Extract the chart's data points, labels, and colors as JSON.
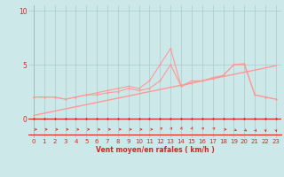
{
  "xlabel": "Vent moyen/en rafales ( km/h )",
  "bg_color": "#cce8e8",
  "grid_color": "#aacccc",
  "line_dark": "#dd2222",
  "line_light": "#ff9999",
  "xlim": [
    -0.5,
    23.5
  ],
  "ylim": [
    -1.8,
    10.5
  ],
  "yticks": [
    0,
    5,
    10
  ],
  "xticks": [
    0,
    1,
    2,
    3,
    4,
    5,
    6,
    7,
    8,
    9,
    10,
    11,
    12,
    13,
    14,
    15,
    16,
    17,
    18,
    19,
    20,
    21,
    22,
    23
  ],
  "series_zero_x": [
    0,
    1,
    2,
    3,
    4,
    5,
    6,
    7,
    8,
    9,
    10,
    11,
    12,
    13,
    14,
    15,
    16,
    17,
    18,
    19,
    20,
    21,
    22,
    23
  ],
  "series_zero_y": [
    0,
    0,
    0,
    0,
    0,
    0,
    0,
    0,
    0,
    0,
    0,
    0,
    0,
    0,
    0,
    0,
    0,
    0,
    0,
    0,
    0,
    0,
    0,
    0
  ],
  "series_avg_x": [
    0,
    1,
    2,
    3,
    4,
    5,
    6,
    7,
    8,
    9,
    10,
    11,
    12,
    13,
    14,
    15,
    16,
    17,
    18,
    19,
    20,
    21,
    22,
    23
  ],
  "series_avg_y": [
    2.0,
    2.0,
    2.0,
    1.8,
    2.0,
    2.2,
    2.2,
    2.4,
    2.5,
    2.8,
    2.6,
    2.8,
    3.5,
    5.0,
    3.0,
    3.3,
    3.5,
    3.7,
    4.0,
    5.0,
    5.1,
    2.2,
    2.0,
    1.8
  ],
  "series_gust_x": [
    0,
    1,
    2,
    3,
    4,
    5,
    6,
    7,
    8,
    9,
    10,
    11,
    12,
    13,
    14,
    15,
    16,
    17,
    18,
    19,
    20,
    21,
    22,
    23
  ],
  "series_gust_y": [
    2.0,
    2.0,
    2.0,
    1.8,
    2.0,
    2.2,
    2.4,
    2.6,
    2.8,
    3.0,
    2.8,
    3.5,
    5.0,
    6.5,
    3.0,
    3.5,
    3.5,
    3.8,
    4.0,
    5.0,
    5.0,
    2.2,
    2.0,
    1.8
  ],
  "trend_x": [
    0,
    23
  ],
  "trend_y": [
    0.3,
    4.9
  ],
  "arrows_dir": [
    0,
    0,
    0,
    0,
    0,
    0,
    0,
    0,
    0,
    0,
    0,
    0,
    45,
    60,
    75,
    75,
    60,
    45,
    0,
    -30,
    -45,
    -60,
    -80,
    -80
  ]
}
